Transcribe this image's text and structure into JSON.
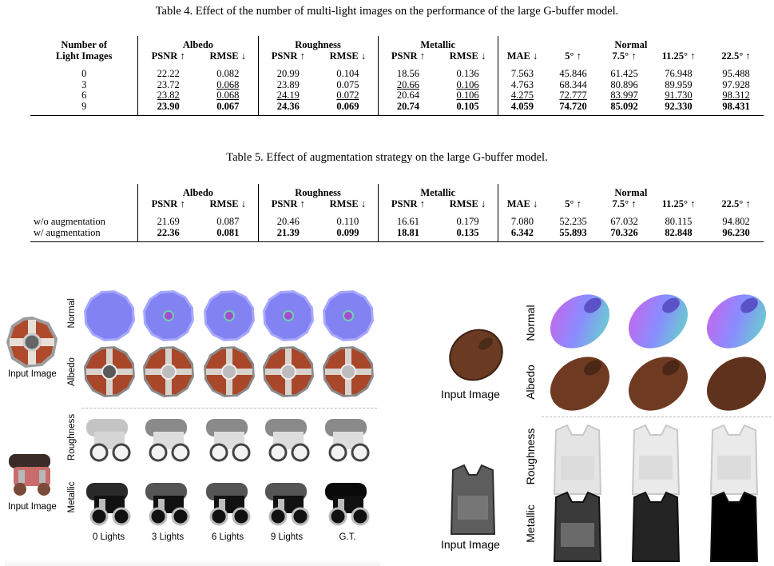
{
  "table4": {
    "caption": "Table 4. Effect of the number of multi-light images on the performance of the large G-buffer model.",
    "col0_line1": "Number of",
    "col0_line2": "Light Images",
    "groups": [
      "Albedo",
      "Roughness",
      "Metallic",
      "Normal"
    ],
    "metrics": [
      "PSNR ↑",
      "RMSE ↓",
      "PSNR ↑",
      "RMSE ↓",
      "PSNR ↑",
      "RMSE ↓",
      "MAE ↓",
      "5° ↑",
      "7.5° ↑",
      "11.25° ↑",
      "22.5° ↑"
    ],
    "rows": [
      {
        "label": "0",
        "values": [
          "22.22",
          "0.082",
          "20.99",
          "0.104",
          "18.56",
          "0.136",
          "7.563",
          "45.846",
          "61.425",
          "76.948",
          "95.488"
        ]
      },
      {
        "label": "3",
        "values": [
          "23.72",
          "0.068",
          "23.89",
          "0.075",
          "20.66",
          "0.106",
          "4.763",
          "68.344",
          "80.896",
          "89.959",
          "97.928"
        ]
      },
      {
        "label": "6",
        "values": [
          "23.82",
          "0.068",
          "24.19",
          "0.072",
          "20.64",
          "0.106",
          "4.275",
          "72.777",
          "83.997",
          "91.730",
          "98.312"
        ]
      },
      {
        "label": "9",
        "values": [
          "23.90",
          "0.067",
          "24.36",
          "0.069",
          "20.74",
          "0.105",
          "4.059",
          "74.720",
          "85.092",
          "92.330",
          "98.431"
        ]
      }
    ]
  },
  "table5": {
    "caption": "Table 5. Effect of augmentation strategy on the large G-buffer model.",
    "groups": [
      "Albedo",
      "Roughness",
      "Metallic",
      "Normal"
    ],
    "metrics": [
      "PSNR ↑",
      "RMSE ↓",
      "PSNR ↑",
      "RMSE ↓",
      "PSNR ↑",
      "RMSE ↓",
      "MAE ↓",
      "5° ↑",
      "7.5° ↑",
      "11.25° ↑",
      "22.5° ↑"
    ],
    "rows": [
      {
        "label": "w/o augmentation",
        "values": [
          "21.69",
          "0.087",
          "20.46",
          "0.110",
          "16.61",
          "0.179",
          "7.080",
          "52.235",
          "67.032",
          "80.115",
          "94.802"
        ]
      },
      {
        "label": "w/ augmentation",
        "values": [
          "22.36",
          "0.081",
          "21.39",
          "0.099",
          "18.81",
          "0.135",
          "6.342",
          "55.893",
          "70.326",
          "82.848",
          "96.230"
        ]
      }
    ]
  },
  "figure_left": {
    "row_labels": [
      "Normal",
      "Albedo",
      "Roughness",
      "Metallic"
    ],
    "input_label": "Input Image",
    "column_labels": [
      "0 Lights",
      "3 Lights",
      "6 Lights",
      "9 Lights",
      "G.T."
    ]
  },
  "figure_right": {
    "row_labels": [
      "Normal",
      "Albedo",
      "Roughness",
      "Metallic"
    ],
    "input_label": "Input Image"
  },
  "colors": {
    "normal_blue": "#7f7fff",
    "albedo_wood": "#a9472a",
    "rust_brown": "#6b3a22",
    "vest_gray": "#d6d6d6",
    "dash_line": "#bbbbbb"
  }
}
